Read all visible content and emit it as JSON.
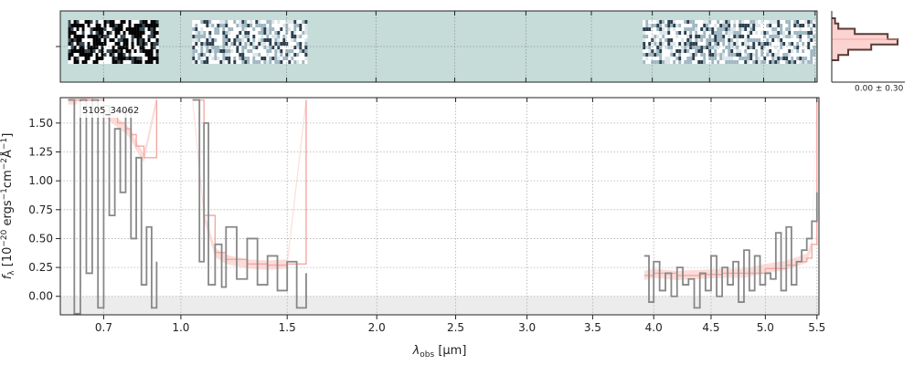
{
  "chart_data": [
    {
      "type": "heatmap",
      "panel": "2D spectrum",
      "background_color": "#c5dcd9",
      "x_range": [
        0.555,
        5.52
      ],
      "trace_segments": [
        {
          "x_start": 0.58,
          "x_end": 0.9,
          "contrast": "high"
        },
        {
          "x_start": 1.05,
          "x_end": 1.6,
          "contrast": "medium"
        },
        {
          "x_start": 3.92,
          "x_end": 5.5,
          "contrast": "medium"
        }
      ]
    },
    {
      "type": "line",
      "panel": "1D spectrum",
      "label": "5105_34062",
      "xlabel_pre": "λ",
      "xlabel_sub": "obs",
      "xlabel_post": " [μm]",
      "ylabel_text": "f",
      "ylabel_sub": "λ",
      "ylabel_units": " [10",
      "ylabel_exp1": "−20",
      "ylabel_mid1": " ergs",
      "ylabel_exp2": "−1",
      "ylabel_mid2": "cm",
      "ylabel_exp3": "−2",
      "ylabel_mid3": "Å",
      "ylabel_exp4": "−1",
      "ylabel_end": "]",
      "x_scale": "sqrt",
      "xlim": [
        0.555,
        5.52
      ],
      "ylim": [
        -0.16,
        1.72
      ],
      "x_ticks": [
        0.7,
        1.0,
        1.5,
        2.0,
        2.5,
        3.0,
        3.5,
        4.0,
        4.5,
        5.0,
        5.5
      ],
      "x_tick_labels": [
        "0.7",
        "1.0",
        "1.5",
        "2.0",
        "2.5",
        "3.0",
        "3.5",
        "4.0",
        "4.5",
        "5.0",
        "5.5"
      ],
      "y_ticks": [
        0.0,
        0.25,
        0.5,
        0.75,
        1.0,
        1.25,
        1.5
      ],
      "y_tick_labels": [
        "0.00",
        "0.25",
        "0.50",
        "0.75",
        "1.00",
        "1.25",
        "1.50"
      ],
      "grid": true,
      "colors": {
        "data": "#888888",
        "model": "#f4a8a3",
        "model_band": "#fbd3d0",
        "zero_band": "#ececec",
        "grid": "#b0b0b0"
      },
      "series": [
        {
          "name": "data",
          "segments": [
            {
              "x": [
                0.58,
                0.6,
                0.62,
                0.64,
                0.66,
                0.68,
                0.7,
                0.72,
                0.74,
                0.76,
                0.78,
                0.8,
                0.82,
                0.84,
                0.86,
                0.88,
                0.9
              ],
              "y": [
                1.7,
                -0.15,
                1.7,
                0.2,
                1.7,
                -0.1,
                1.65,
                0.7,
                1.45,
                0.9,
                1.6,
                0.5,
                1.2,
                0.1,
                0.6,
                -0.1,
                0.3
              ]
            },
            {
              "x": [
                1.05,
                1.08,
                1.1,
                1.12,
                1.15,
                1.18,
                1.2,
                1.25,
                1.3,
                1.35,
                1.4,
                1.45,
                1.5,
                1.55,
                1.6
              ],
              "y": [
                1.7,
                0.3,
                1.5,
                0.1,
                0.45,
                0.08,
                0.6,
                0.15,
                0.5,
                0.1,
                0.35,
                0.05,
                0.3,
                -0.1,
                0.2
              ]
            },
            {
              "x": [
                3.92,
                3.96,
                4.0,
                4.05,
                4.1,
                4.15,
                4.2,
                4.25,
                4.3,
                4.35,
                4.4,
                4.45,
                4.5,
                4.55,
                4.6,
                4.65,
                4.7,
                4.75,
                4.8,
                4.85,
                4.9,
                4.95,
                5.0,
                5.05,
                5.1,
                5.15,
                5.2,
                5.25,
                5.3,
                5.35,
                5.4,
                5.45,
                5.5
              ],
              "y": [
                0.35,
                -0.05,
                0.3,
                0.05,
                0.2,
                0.0,
                0.25,
                0.1,
                0.15,
                -0.1,
                0.2,
                0.05,
                0.35,
                0.0,
                0.25,
                0.1,
                0.3,
                -0.05,
                0.4,
                0.05,
                0.35,
                0.1,
                0.2,
                0.15,
                0.55,
                0.05,
                0.6,
                0.1,
                0.3,
                0.4,
                0.5,
                0.65,
                0.9
              ]
            }
          ]
        },
        {
          "name": "model",
          "segments": [
            {
              "x": [
                0.58,
                0.65,
                0.7,
                0.75,
                0.78,
                0.8,
                0.82,
                0.85,
                0.9
              ],
              "y": [
                1.7,
                1.7,
                1.6,
                1.5,
                1.45,
                1.4,
                1.3,
                1.2,
                1.7
              ]
            },
            {
              "x": [
                1.05,
                1.1,
                1.15,
                1.2,
                1.3,
                1.4,
                1.5,
                1.6
              ],
              "y": [
                1.7,
                0.7,
                0.38,
                0.32,
                0.28,
                0.27,
                0.28,
                1.7
              ]
            },
            {
              "x": [
                3.92,
                4.0,
                4.2,
                4.4,
                4.6,
                4.8,
                5.0,
                5.2,
                5.3,
                5.4,
                5.45,
                5.5
              ],
              "y": [
                0.18,
                0.2,
                0.18,
                0.19,
                0.2,
                0.2,
                0.24,
                0.27,
                0.3,
                0.33,
                0.45,
                1.7
              ]
            }
          ]
        }
      ]
    },
    {
      "type": "histogram",
      "panel": "residual histogram",
      "annotation": "0.00 ± 0.30",
      "bins": [
        -0.6,
        -0.45,
        -0.3,
        -0.15,
        0.0,
        0.15,
        0.3,
        0.45,
        0.6
      ],
      "counts": [
        0.05,
        0.1,
        0.35,
        0.85,
        1.0,
        0.6,
        0.25,
        0.1
      ]
    }
  ]
}
